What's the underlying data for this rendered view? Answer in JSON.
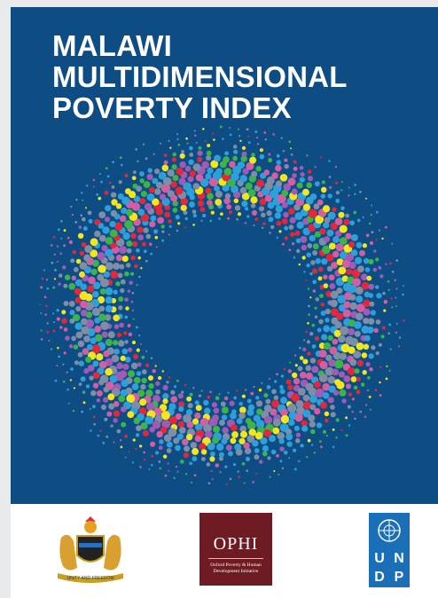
{
  "title": {
    "lines": [
      "MALAWI",
      "MULTIDIMENSIONAL",
      "POVERTY INDEX"
    ]
  },
  "logos": {
    "malawi": {
      "motto": "UNITY AND FREEDOM"
    },
    "ophi": {
      "name": "OPHI",
      "subtitle": [
        "Oxford Poverty & Human",
        "Development Initiative"
      ]
    },
    "undp": {
      "letters": [
        "U",
        "N",
        "D",
        "P"
      ]
    }
  }
}
